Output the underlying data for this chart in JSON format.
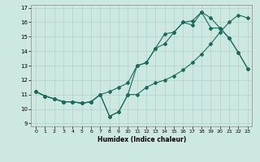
{
  "xlabel": "Humidex (Indice chaleur)",
  "background_color": "#cce8e0",
  "grid_color": "#aad4cc",
  "line_color": "#1a6b5e",
  "xlim": [
    -0.5,
    23.5
  ],
  "ylim": [
    8.8,
    17.2
  ],
  "xticks": [
    0,
    1,
    2,
    3,
    4,
    5,
    6,
    7,
    8,
    9,
    10,
    11,
    12,
    13,
    14,
    15,
    16,
    17,
    18,
    19,
    20,
    21,
    22,
    23
  ],
  "yticks": [
    9,
    10,
    11,
    12,
    13,
    14,
    15,
    16,
    17
  ],
  "line1_x": [
    0,
    1,
    2,
    3,
    4,
    5,
    6,
    7,
    8,
    9,
    10,
    11,
    12,
    13,
    14,
    15,
    16,
    17,
    18,
    19,
    20,
    21,
    22,
    23
  ],
  "line1_y": [
    11.2,
    10.9,
    10.7,
    10.5,
    10.5,
    10.4,
    10.5,
    11.0,
    9.5,
    9.8,
    11.0,
    11.0,
    11.5,
    11.8,
    12.0,
    12.3,
    12.7,
    13.2,
    13.8,
    14.5,
    15.3,
    16.0,
    16.5,
    16.3
  ],
  "line2_x": [
    0,
    1,
    2,
    3,
    4,
    5,
    6,
    7,
    8,
    9,
    10,
    11,
    12,
    13,
    14,
    15,
    16,
    17,
    18,
    19,
    20,
    21,
    22,
    23
  ],
  "line2_y": [
    11.2,
    10.9,
    10.7,
    10.5,
    10.5,
    10.4,
    10.5,
    11.0,
    11.2,
    11.5,
    11.8,
    13.0,
    13.2,
    14.2,
    14.5,
    15.3,
    16.0,
    15.8,
    16.7,
    15.6,
    15.6,
    14.9,
    13.9,
    12.8
  ],
  "line3_x": [
    0,
    1,
    2,
    3,
    4,
    5,
    6,
    7,
    8,
    9,
    10,
    11,
    12,
    13,
    14,
    15,
    16,
    17,
    18,
    19,
    20,
    21,
    22,
    23
  ],
  "line3_y": [
    11.2,
    10.9,
    10.7,
    10.5,
    10.5,
    10.4,
    10.5,
    11.0,
    9.5,
    9.8,
    11.0,
    13.0,
    13.2,
    14.2,
    15.2,
    15.3,
    16.0,
    16.1,
    16.7,
    16.3,
    15.6,
    14.9,
    13.9,
    12.8
  ]
}
